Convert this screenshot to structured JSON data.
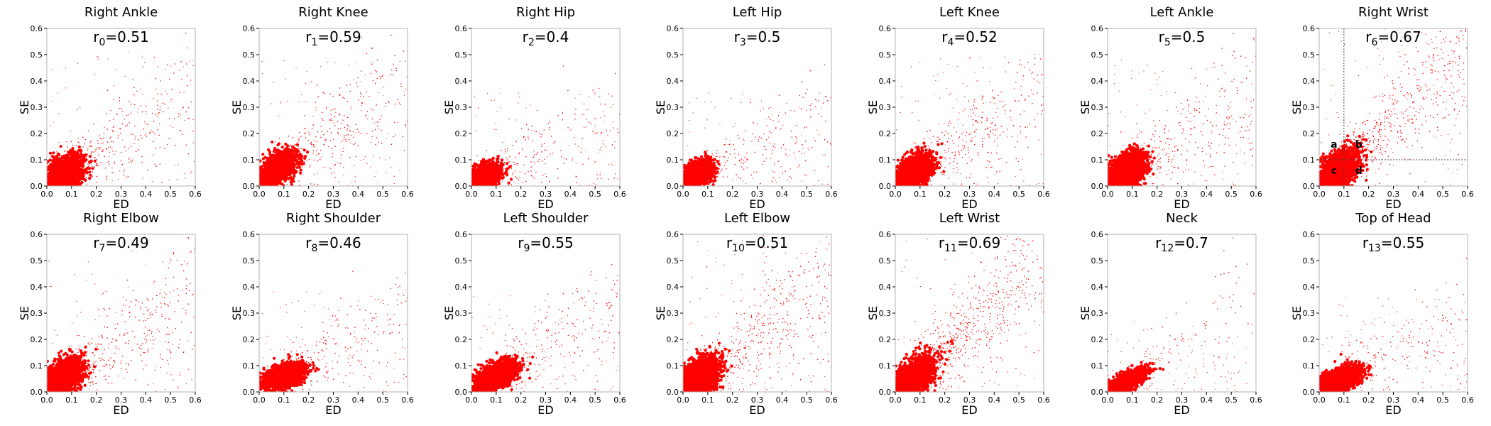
{
  "chart_data": [
    {
      "type": "scatter",
      "title": "Right Ankle",
      "corr_var": "r",
      "corr_index": "0",
      "corr_value": "=0.51",
      "xlabel": "ED",
      "ylabel": "SE",
      "xlim": [
        0,
        0.6
      ],
      "ylim": [
        0,
        0.6
      ],
      "ticks": [
        "0.0",
        "0.1",
        "0.2",
        "0.3",
        "0.4",
        "0.5",
        "0.6"
      ],
      "color": "#ff0000",
      "cluster": {
        "center_x": 0.07,
        "center_y": 0.05,
        "spread_x": 0.055,
        "spread_y": 0.045,
        "slope": 0.55,
        "tail_density": 0.55
      }
    },
    {
      "type": "scatter",
      "title": "Right Knee",
      "corr_var": "r",
      "corr_index": "1",
      "corr_value": "=0.59",
      "xlabel": "ED",
      "ylabel": "SE",
      "xlim": [
        0,
        0.6
      ],
      "ylim": [
        0,
        0.6
      ],
      "ticks": [
        "0.0",
        "0.1",
        "0.2",
        "0.3",
        "0.4",
        "0.5",
        "0.6"
      ],
      "color": "#ff0000",
      "cluster": {
        "center_x": 0.08,
        "center_y": 0.07,
        "spread_x": 0.05,
        "spread_y": 0.04,
        "slope": 0.65,
        "tail_density": 0.5
      }
    },
    {
      "type": "scatter",
      "title": "Right Hip",
      "corr_var": "r",
      "corr_index": "2",
      "corr_value": "=0.4",
      "xlabel": "ED",
      "ylabel": "SE",
      "xlim": [
        0,
        0.6
      ],
      "ylim": [
        0,
        0.6
      ],
      "ticks": [
        "0.0",
        "0.1",
        "0.2",
        "0.3",
        "0.4",
        "0.5",
        "0.6"
      ],
      "color": "#ff0000",
      "cluster": {
        "center_x": 0.06,
        "center_y": 0.04,
        "spread_x": 0.04,
        "spread_y": 0.03,
        "slope": 0.35,
        "tail_density": 0.3
      }
    },
    {
      "type": "scatter",
      "title": "Left Hip",
      "corr_var": "r",
      "corr_index": "3",
      "corr_value": "=0.5",
      "xlabel": "ED",
      "ylabel": "SE",
      "xlim": [
        0,
        0.6
      ],
      "ylim": [
        0,
        0.6
      ],
      "ticks": [
        "0.0",
        "0.1",
        "0.2",
        "0.3",
        "0.4",
        "0.5",
        "0.6"
      ],
      "color": "#ff0000",
      "cluster": {
        "center_x": 0.06,
        "center_y": 0.05,
        "spread_x": 0.04,
        "spread_y": 0.03,
        "slope": 0.4,
        "tail_density": 0.3
      }
    },
    {
      "type": "scatter",
      "title": "Left Knee",
      "corr_var": "r",
      "corr_index": "4",
      "corr_value": "=0.52",
      "xlabel": "ED",
      "ylabel": "SE",
      "xlim": [
        0,
        0.6
      ],
      "ylim": [
        0,
        0.6
      ],
      "ticks": [
        "0.0",
        "0.1",
        "0.2",
        "0.3",
        "0.4",
        "0.5",
        "0.6"
      ],
      "color": "#ff0000",
      "cluster": {
        "center_x": 0.08,
        "center_y": 0.06,
        "spread_x": 0.05,
        "spread_y": 0.04,
        "slope": 0.55,
        "tail_density": 0.55
      }
    },
    {
      "type": "scatter",
      "title": "Left Ankle",
      "corr_var": "r",
      "corr_index": "5",
      "corr_value": "=0.5",
      "xlabel": "ED",
      "ylabel": "SE",
      "xlim": [
        0,
        0.6
      ],
      "ylim": [
        0,
        0.6
      ],
      "ticks": [
        "0.0",
        "0.1",
        "0.2",
        "0.3",
        "0.4",
        "0.5",
        "0.6"
      ],
      "color": "#ff0000",
      "cluster": {
        "center_x": 0.08,
        "center_y": 0.06,
        "spread_x": 0.055,
        "spread_y": 0.045,
        "slope": 0.55,
        "tail_density": 0.5
      }
    },
    {
      "type": "scatter",
      "title": "Right Wrist",
      "corr_var": "r",
      "corr_index": "6",
      "corr_value": "=0.67",
      "xlabel": "ED",
      "ylabel": "SE",
      "xlim": [
        0,
        0.6
      ],
      "ylim": [
        0,
        0.6
      ],
      "ticks": [
        "0.0",
        "0.1",
        "0.2",
        "0.3",
        "0.4",
        "0.5",
        "0.6"
      ],
      "color": "#ff0000",
      "cluster": {
        "center_x": 0.08,
        "center_y": 0.06,
        "spread_x": 0.06,
        "spread_y": 0.05,
        "slope": 0.85,
        "tail_density": 0.9
      },
      "thresholds": {
        "x": 0.1,
        "y": 0.1
      },
      "quadrant_labels": [
        {
          "text": "a",
          "x": 0.06,
          "y": 0.16
        },
        {
          "text": "b",
          "x": 0.16,
          "y": 0.16
        },
        {
          "text": "c",
          "x": 0.06,
          "y": 0.06
        },
        {
          "text": "d",
          "x": 0.16,
          "y": 0.06
        }
      ]
    },
    {
      "type": "scatter",
      "title": "Right Elbow",
      "corr_var": "r",
      "corr_index": "7",
      "corr_value": "=0.49",
      "xlabel": "ED",
      "ylabel": "SE",
      "xlim": [
        0,
        0.6
      ],
      "ylim": [
        0,
        0.6
      ],
      "ticks": [
        "0.0",
        "0.1",
        "0.2",
        "0.3",
        "0.4",
        "0.5",
        "0.6"
      ],
      "color": "#ff0000",
      "cluster": {
        "center_x": 0.07,
        "center_y": 0.06,
        "spread_x": 0.055,
        "spread_y": 0.045,
        "slope": 0.6,
        "tail_density": 0.6
      }
    },
    {
      "type": "scatter",
      "title": "Right Shoulder",
      "corr_var": "r",
      "corr_index": "8",
      "corr_value": "=0.46",
      "xlabel": "ED",
      "ylabel": "SE",
      "xlim": [
        0,
        0.6
      ],
      "ylim": [
        0,
        0.6
      ],
      "ticks": [
        "0.0",
        "0.1",
        "0.2",
        "0.3",
        "0.4",
        "0.5",
        "0.6"
      ],
      "color": "#ff0000",
      "cluster": {
        "center_x": 0.1,
        "center_y": 0.06,
        "spread_x": 0.06,
        "spread_y": 0.03,
        "slope": 0.45,
        "tail_density": 0.35
      }
    },
    {
      "type": "scatter",
      "title": "Left Shoulder",
      "corr_var": "r",
      "corr_index": "9",
      "corr_value": "=0.55",
      "xlabel": "ED",
      "ylabel": "SE",
      "xlim": [
        0,
        0.6
      ],
      "ylim": [
        0,
        0.6
      ],
      "ticks": [
        "0.0",
        "0.1",
        "0.2",
        "0.3",
        "0.4",
        "0.5",
        "0.6"
      ],
      "color": "#ff0000",
      "cluster": {
        "center_x": 0.1,
        "center_y": 0.06,
        "spread_x": 0.06,
        "spread_y": 0.035,
        "slope": 0.55,
        "tail_density": 0.35
      }
    },
    {
      "type": "scatter",
      "title": "Left Elbow",
      "corr_var": "r",
      "corr_index": "10",
      "corr_value": "=0.51",
      "xlabel": "ED",
      "ylabel": "SE",
      "xlim": [
        0,
        0.6
      ],
      "ylim": [
        0,
        0.6
      ],
      "ticks": [
        "0.0",
        "0.1",
        "0.2",
        "0.3",
        "0.4",
        "0.5",
        "0.6"
      ],
      "color": "#ff0000",
      "cluster": {
        "center_x": 0.07,
        "center_y": 0.06,
        "spread_x": 0.06,
        "spread_y": 0.05,
        "slope": 0.65,
        "tail_density": 0.8
      }
    },
    {
      "type": "scatter",
      "title": "Left Wrist",
      "corr_var": "r",
      "corr_index": "11",
      "corr_value": "=0.69",
      "xlabel": "ED",
      "ylabel": "SE",
      "xlim": [
        0,
        0.6
      ],
      "ylim": [
        0,
        0.6
      ],
      "ticks": [
        "0.0",
        "0.1",
        "0.2",
        "0.3",
        "0.4",
        "0.5",
        "0.6"
      ],
      "color": "#ff0000",
      "cluster": {
        "center_x": 0.08,
        "center_y": 0.06,
        "spread_x": 0.06,
        "spread_y": 0.05,
        "slope": 0.85,
        "tail_density": 1.0
      }
    },
    {
      "type": "scatter",
      "title": "Neck",
      "corr_var": "r",
      "corr_index": "12",
      "corr_value": "=0.7",
      "xlabel": "ED",
      "ylabel": "SE",
      "xlim": [
        0,
        0.6
      ],
      "ylim": [
        0,
        0.6
      ],
      "ticks": [
        "0.0",
        "0.1",
        "0.2",
        "0.3",
        "0.4",
        "0.5",
        "0.6"
      ],
      "color": "#ff0000",
      "cluster": {
        "center_x": 0.08,
        "center_y": 0.04,
        "spread_x": 0.05,
        "spread_y": 0.025,
        "slope": 0.75,
        "tail_density": 0.15
      }
    },
    {
      "type": "scatter",
      "title": "Top of Head",
      "corr_var": "r",
      "corr_index": "13",
      "corr_value": "=0.55",
      "xlabel": "ED",
      "ylabel": "SE",
      "xlim": [
        0,
        0.6
      ],
      "ylim": [
        0,
        0.6
      ],
      "ticks": [
        "0.0",
        "0.1",
        "0.2",
        "0.3",
        "0.4",
        "0.5",
        "0.6"
      ],
      "color": "#ff0000",
      "cluster": {
        "center_x": 0.09,
        "center_y": 0.05,
        "spread_x": 0.06,
        "spread_y": 0.03,
        "slope": 0.45,
        "tail_density": 0.3
      }
    }
  ]
}
